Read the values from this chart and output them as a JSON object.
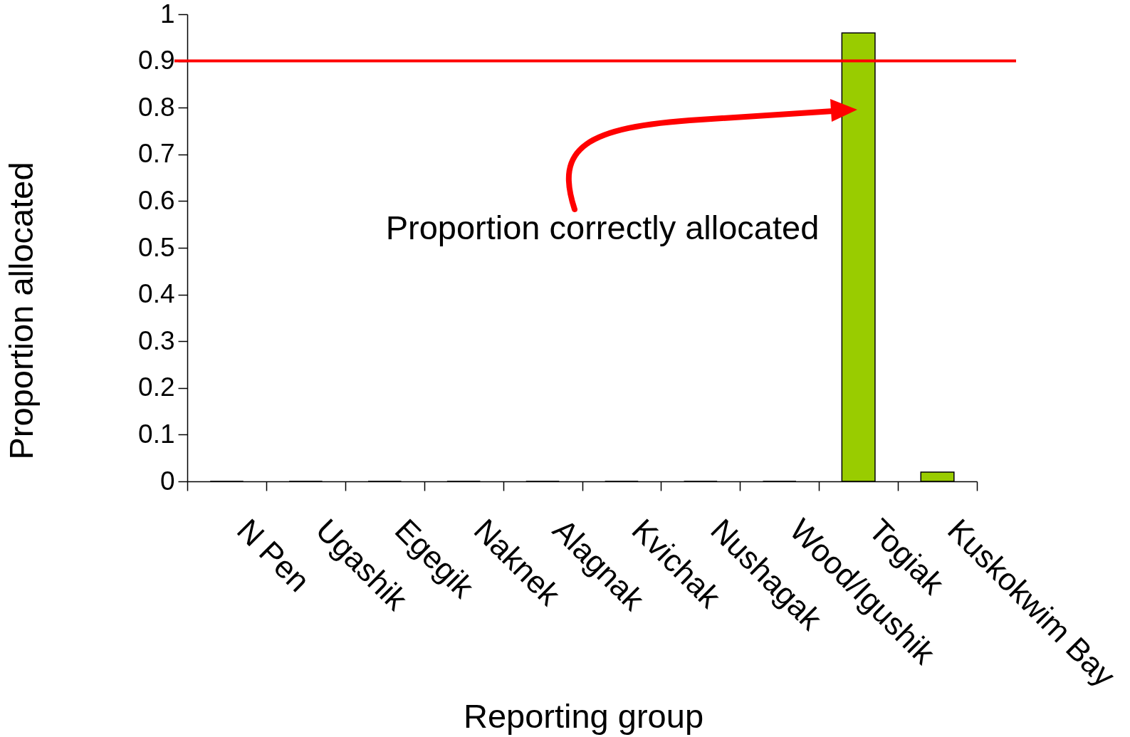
{
  "chart_data": {
    "type": "bar",
    "xlabel": "Reporting group",
    "ylabel": "Proportion allocated",
    "categories": [
      "N Pen",
      "Ugashik",
      "Egegik",
      "Naknek",
      "Alagnak",
      "Kvichak",
      "Nushagak",
      "Wood/Igushik",
      "Togiak",
      "Kuskokwim Bay"
    ],
    "values": [
      0,
      0,
      0,
      0,
      0,
      0,
      0,
      0,
      0.96,
      0.02
    ],
    "color": "#99cc00",
    "ylim": [
      0,
      1
    ],
    "yticks": [
      0,
      0.1,
      0.2,
      0.3,
      0.4,
      0.5,
      0.6,
      0.7,
      0.8,
      0.9,
      1
    ],
    "ref_lines": [
      {
        "axis": "y",
        "value": 0.9,
        "color": "#ff0000"
      }
    ],
    "annotations": [
      "Proportion correctly allocated"
    ]
  }
}
